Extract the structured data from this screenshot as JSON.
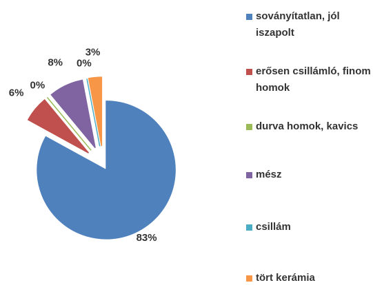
{
  "chart_data": {
    "type": "pie",
    "categories": [
      "soványítatlan, jól iszapolt",
      "erősen csillámló, finom homok",
      "durva homok, kavics",
      "mész",
      "csillám",
      "tört kerámia"
    ],
    "values": [
      83,
      6,
      0,
      8,
      0,
      3
    ],
    "value_labels": [
      "83%",
      "6%",
      "0%",
      "8%",
      "0%",
      "3%"
    ],
    "colors": [
      "#4f81bd",
      "#c0504d",
      "#9bbb59",
      "#8064a2",
      "#4bacc6",
      "#f79646"
    ],
    "legend": "right"
  }
}
